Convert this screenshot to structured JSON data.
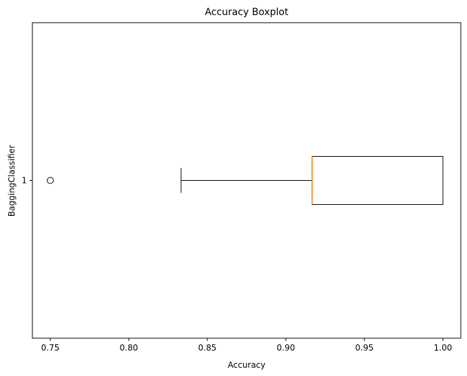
{
  "chart_data": {
    "type": "boxplot",
    "orientation": "horizontal",
    "title": "Accuracy Boxplot",
    "xlabel": "Accuracy",
    "ylabel": "BaggingClassifier",
    "xlim": [
      0.7386,
      1.0114
    ],
    "x_ticks": [
      0.75,
      0.8,
      0.85,
      0.9,
      0.95,
      1.0
    ],
    "x_tick_labels": [
      "0.75",
      "0.80",
      "0.85",
      "0.90",
      "0.95",
      "1.00"
    ],
    "y_tick_labels": [
      "1"
    ],
    "series": [
      {
        "category": "1",
        "whisker_low": 0.8333,
        "q1": 0.9167,
        "median": 0.9167,
        "q3": 1.0,
        "whisker_high": 1.0,
        "outliers": [
          0.75
        ]
      }
    ],
    "colors": {
      "box": "#000000",
      "median": "#ff7f0e",
      "whisker": "#000000",
      "outlier": "#000000"
    },
    "grid": false
  }
}
